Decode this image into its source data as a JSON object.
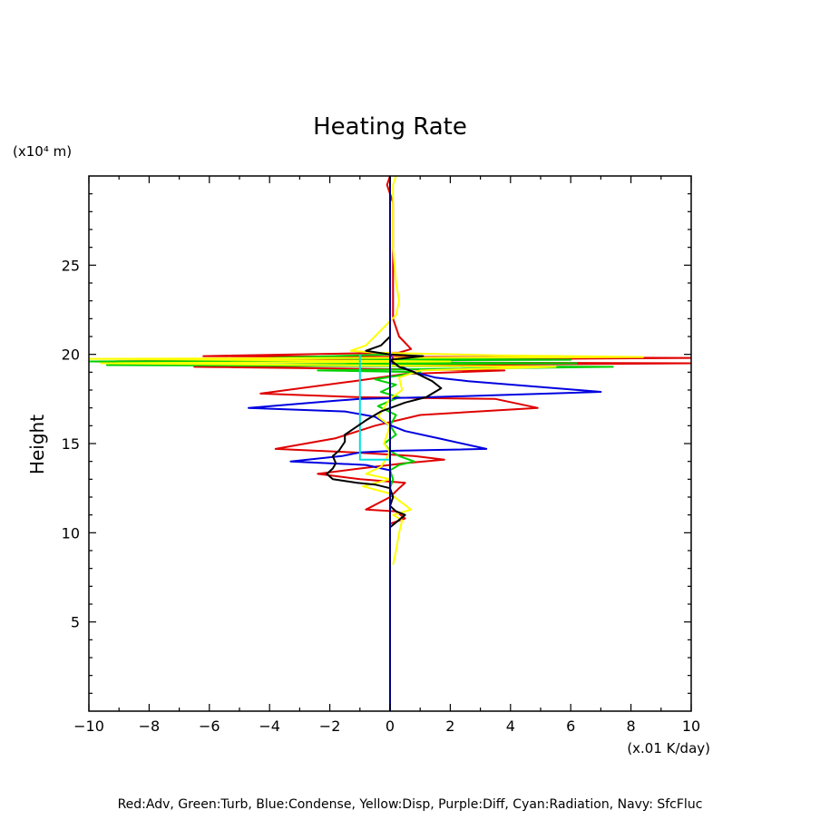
{
  "chart_data": {
    "type": "line",
    "title": "Heating Rate",
    "ylabel": "Height",
    "yunit": "(x10⁴ m)",
    "xunit": "(x.01 K/day)",
    "legend_note": "Red:Adv, Green:Turb, Blue:Condense, Yellow:Disp, Purple:Diff, Cyan:Radiation, Navy: SfcFluc",
    "xlim": [
      -10,
      10
    ],
    "ylim": [
      0,
      30
    ],
    "x_ticks": [
      -10,
      -8,
      -6,
      -4,
      -2,
      0,
      2,
      4,
      6,
      8,
      10
    ],
    "x_tick_labels": [
      "−10",
      "−8",
      "−6",
      "−4",
      "−2",
      "0",
      "2",
      "4",
      "6",
      "8",
      "10"
    ],
    "y_ticks": [
      5,
      10,
      15,
      20,
      25
    ],
    "y_tick_labels": [
      "5",
      "10",
      "15",
      "20",
      "25"
    ],
    "grid": false,
    "series": [
      {
        "key": "red",
        "color": "#e00000",
        "points": [
          [
            0,
            30
          ],
          [
            -0.1,
            29.5
          ],
          [
            0.1,
            28.5
          ],
          [
            0.1,
            27
          ],
          [
            0.1,
            25
          ],
          [
            0.1,
            23
          ],
          [
            0.1,
            22
          ],
          [
            0.3,
            21
          ],
          [
            0.7,
            20.3
          ],
          [
            0.3,
            20.1
          ],
          [
            -6.2,
            19.9
          ],
          [
            10,
            19.8
          ],
          [
            -9.8,
            19.6
          ],
          [
            10,
            19.5
          ],
          [
            -6.5,
            19.3
          ],
          [
            3.8,
            19.1
          ],
          [
            0.5,
            18.9
          ],
          [
            -1.2,
            18.5
          ],
          [
            -4.3,
            17.8
          ],
          [
            -1.0,
            17.6
          ],
          [
            3.5,
            17.5
          ],
          [
            4.9,
            17.0
          ],
          [
            1.0,
            16.6
          ],
          [
            -0.5,
            16.0
          ],
          [
            -1.8,
            15.3
          ],
          [
            -3.8,
            14.7
          ],
          [
            -1.2,
            14.5
          ],
          [
            0.8,
            14.3
          ],
          [
            1.8,
            14.1
          ],
          [
            0.5,
            13.9
          ],
          [
            -1.0,
            13.6
          ],
          [
            -2.4,
            13.3
          ],
          [
            -1.0,
            13.0
          ],
          [
            0.5,
            12.8
          ],
          [
            0.3,
            12.5
          ],
          [
            0.0,
            12.0
          ],
          [
            -0.8,
            11.3
          ],
          [
            0.2,
            11.2
          ],
          [
            0.5,
            10.8
          ],
          [
            0,
            10.5
          ]
        ]
      },
      {
        "key": "green",
        "color": "#00d000",
        "points": [
          [
            0,
            20.0
          ],
          [
            -4.0,
            19.8
          ],
          [
            6.0,
            19.7
          ],
          [
            -10.0,
            19.6
          ],
          [
            6.2,
            19.5
          ],
          [
            -9.4,
            19.4
          ],
          [
            7.4,
            19.3
          ],
          [
            -2.4,
            19.1
          ],
          [
            1.0,
            19.0
          ],
          [
            -0.5,
            18.6
          ],
          [
            0.2,
            18.3
          ],
          [
            -0.3,
            17.9
          ],
          [
            0.3,
            17.6
          ],
          [
            -0.4,
            17.1
          ],
          [
            0.2,
            16.6
          ],
          [
            0,
            16.0
          ],
          [
            0.2,
            15.5
          ],
          [
            -0.2,
            15.0
          ],
          [
            0.0,
            14.6
          ],
          [
            0.3,
            14.3
          ],
          [
            0.8,
            14.0
          ],
          [
            0.3,
            13.8
          ],
          [
            0,
            13.5
          ],
          [
            0.1,
            13.0
          ],
          [
            0,
            12.5
          ]
        ]
      },
      {
        "key": "blue",
        "color": "#0000e0",
        "points": [
          [
            0,
            20.0
          ],
          [
            0.1,
            19.5
          ],
          [
            0.8,
            19.0
          ],
          [
            1.5,
            18.7
          ],
          [
            2.6,
            18.5
          ],
          [
            7.0,
            17.9
          ],
          [
            1.3,
            17.6
          ],
          [
            -1.0,
            17.5
          ],
          [
            -1.8,
            17.4
          ],
          [
            -4.7,
            17.0
          ],
          [
            -1.5,
            16.8
          ],
          [
            -0.5,
            16.5
          ],
          [
            -0.1,
            16.1
          ],
          [
            0.5,
            15.7
          ],
          [
            1.6,
            15.3
          ],
          [
            3.2,
            14.7
          ],
          [
            0.2,
            14.6
          ],
          [
            -1.0,
            14.5
          ],
          [
            -1.6,
            14.3
          ],
          [
            -3.3,
            14.0
          ],
          [
            -0.8,
            13.8
          ],
          [
            0.0,
            13.5
          ],
          [
            0,
            13.0
          ]
        ]
      },
      {
        "key": "yellow",
        "color": "#ffff00",
        "points": [
          [
            0.2,
            30.0
          ],
          [
            0.1,
            29.5
          ],
          [
            0.1,
            28
          ],
          [
            0.1,
            26
          ],
          [
            0.2,
            24
          ],
          [
            0.3,
            23
          ],
          [
            0.2,
            22.2
          ],
          [
            -0.8,
            20.5
          ],
          [
            -1.3,
            20.2
          ],
          [
            -0.5,
            20.1
          ],
          [
            3.5,
            19.95
          ],
          [
            8.4,
            19.85
          ],
          [
            -10.0,
            19.75
          ],
          [
            2.0,
            19.6
          ],
          [
            -9.6,
            19.5
          ],
          [
            5.5,
            19.3
          ],
          [
            1.0,
            19.1
          ],
          [
            0.3,
            18.7
          ],
          [
            0.4,
            18.0
          ],
          [
            0.0,
            17.5
          ],
          [
            -0.4,
            16.5
          ],
          [
            0.0,
            16.0
          ],
          [
            -0.2,
            15.0
          ],
          [
            0.0,
            14.5
          ],
          [
            -0.3,
            13.7
          ],
          [
            -0.8,
            13.3
          ],
          [
            0.0,
            13.0
          ],
          [
            -0.9,
            12.6
          ],
          [
            0.0,
            12.2
          ],
          [
            0.3,
            11.8
          ],
          [
            0.7,
            11.3
          ],
          [
            0.1,
            11.0
          ],
          [
            0.4,
            10.7
          ],
          [
            0.3,
            10.0
          ],
          [
            0.2,
            9.0
          ],
          [
            0.1,
            8.2
          ]
        ]
      },
      {
        "key": "purple",
        "color": "#a000a0",
        "points": [
          [
            0,
            20.0
          ],
          [
            0.1,
            19.8
          ],
          [
            0,
            19.5
          ]
        ]
      },
      {
        "key": "cyan",
        "color": "#00e0e0",
        "points": [
          [
            -1.0,
            20.0
          ],
          [
            -1.0,
            14.1
          ],
          [
            0,
            14.1
          ],
          [
            0,
            12.0
          ]
        ]
      },
      {
        "key": "black",
        "color": "#000000",
        "points": [
          [
            0,
            30
          ],
          [
            0.0,
            29
          ],
          [
            0.0,
            27
          ],
          [
            0.0,
            25
          ],
          [
            0,
            22
          ],
          [
            0,
            21
          ],
          [
            -0.3,
            20.5
          ],
          [
            -0.8,
            20.2
          ],
          [
            0.0,
            20.0
          ],
          [
            1.1,
            19.9
          ],
          [
            0.0,
            19.7
          ],
          [
            0.3,
            19.3
          ],
          [
            0.8,
            19.0
          ],
          [
            1.4,
            18.5
          ],
          [
            1.7,
            18.1
          ],
          [
            1.2,
            17.6
          ],
          [
            0.5,
            17.3
          ],
          [
            -0.3,
            16.8
          ],
          [
            -0.8,
            16.3
          ],
          [
            -1.5,
            15.5
          ],
          [
            -1.5,
            15.1
          ],
          [
            -1.7,
            14.6
          ],
          [
            -1.9,
            14.3
          ],
          [
            -1.8,
            13.9
          ],
          [
            -1.9,
            13.6
          ],
          [
            -2.1,
            13.3
          ],
          [
            -1.9,
            13.0
          ],
          [
            -1.5,
            12.9
          ],
          [
            -1.1,
            12.8
          ],
          [
            -0.5,
            12.7
          ],
          [
            0,
            12.5
          ],
          [
            0.1,
            12.0
          ],
          [
            0.0,
            11.5
          ],
          [
            0.2,
            11.2
          ],
          [
            0.5,
            11.0
          ],
          [
            0,
            10.3
          ]
        ]
      },
      {
        "key": "navy",
        "color": "#000080",
        "points": [
          [
            0,
            0
          ],
          [
            0,
            30
          ]
        ]
      }
    ]
  }
}
